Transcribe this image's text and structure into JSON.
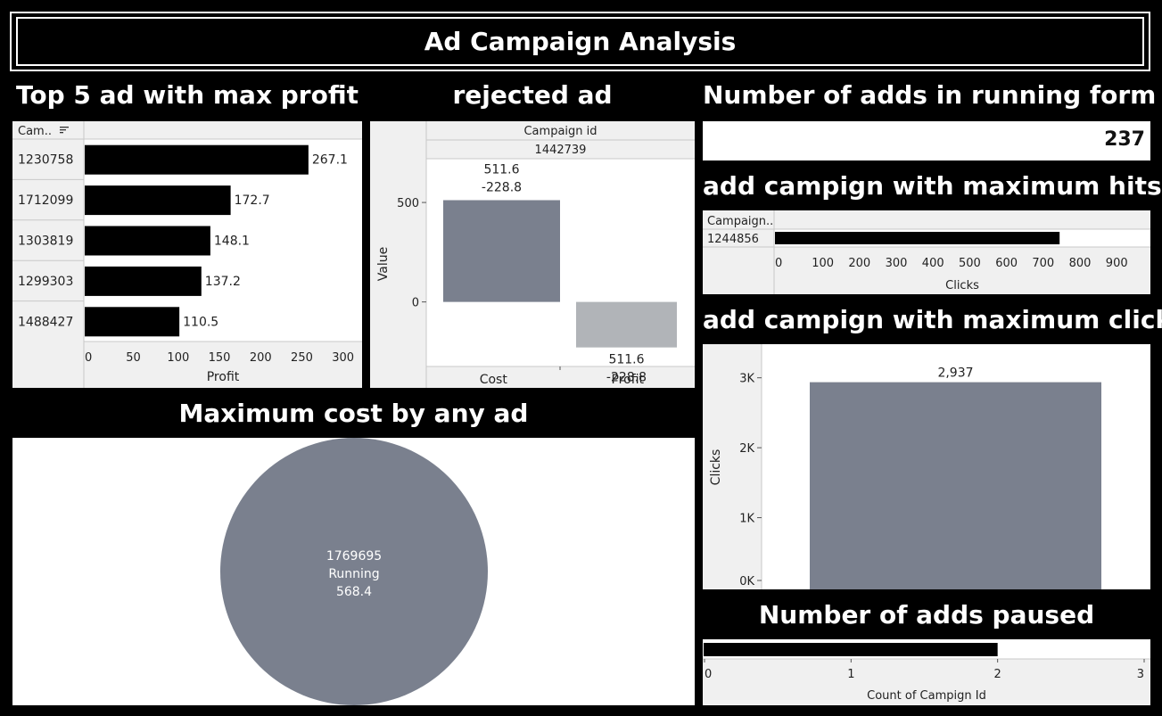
{
  "dashboard": {
    "title": "Ad Campaign Analysis"
  },
  "sections": {
    "top5": "Top 5 ad with max profit",
    "rejected": "rejected ad",
    "running": "Number of adds in running form",
    "max_hits": "add campign with maximum hits",
    "max_clicks": "add campign with maximum clicks",
    "max_cost": "Maximum cost by any ad",
    "paused": "Number of adds paused"
  },
  "kpi": {
    "running_count": "237"
  },
  "colors": {
    "bar_black": "#000000",
    "bar_grey": "#7a808e",
    "bar_light": "#b1b4b8",
    "header_bg": "#f0f0f0"
  },
  "chart_data": [
    {
      "id": "top5",
      "type": "bar",
      "orientation": "horizontal",
      "column_header": "Cam..",
      "sort_icon": "sort-descending-icon",
      "categories": [
        "1230758",
        "1712099",
        "1303819",
        "1299303",
        "1488427"
      ],
      "values": [
        267.1,
        172.7,
        148.1,
        137.2,
        110.5
      ],
      "value_labels": [
        "267.1",
        "172.7",
        "148.1",
        "137.2",
        "110.5"
      ],
      "xlabel": "Profit",
      "xlim": [
        0,
        330
      ],
      "xticks": [
        0,
        50,
        100,
        150,
        200,
        250,
        300
      ]
    },
    {
      "id": "rejected",
      "type": "bar",
      "header": "Campaign id",
      "campaign": "1442739",
      "categories": [
        "Cost",
        "Profit"
      ],
      "values": [
        511.6,
        -228.8
      ],
      "label_lines": [
        [
          "511.6",
          "-228.8"
        ],
        [
          "511.6",
          "-228.8"
        ]
      ],
      "ylabel": "Value",
      "ylim": [
        -320,
        720
      ],
      "yticks": [
        0,
        500
      ]
    },
    {
      "id": "max_hits",
      "type": "bar",
      "orientation": "horizontal",
      "column_header": "Campaign..",
      "categories": [
        "1244856"
      ],
      "values": [
        765
      ],
      "xlabel": "Clicks",
      "xlim": [
        0,
        1000
      ],
      "xticks": [
        0,
        100,
        200,
        300,
        400,
        500,
        600,
        700,
        800,
        900
      ]
    },
    {
      "id": "max_clicks",
      "type": "bar",
      "categories": [
        ""
      ],
      "values": [
        2937
      ],
      "value_labels": [
        "2,937"
      ],
      "ylabel": "Clicks",
      "ylim": [
        0,
        3200
      ],
      "yticks": [
        0,
        1000,
        2000,
        3000
      ],
      "ytick_labels": [
        "0K",
        "1K",
        "2K",
        "3K"
      ]
    },
    {
      "id": "max_cost",
      "type": "pie",
      "slices": [
        {
          "campaign": "1769695",
          "status": "Running",
          "value": 568.4,
          "value_label": "568.4"
        }
      ]
    },
    {
      "id": "paused",
      "type": "bar",
      "orientation": "horizontal",
      "values": [
        2
      ],
      "xlabel": "Count of Campign Id",
      "xlim": [
        0,
        3
      ],
      "xticks": [
        0,
        1,
        2,
        3
      ]
    }
  ]
}
